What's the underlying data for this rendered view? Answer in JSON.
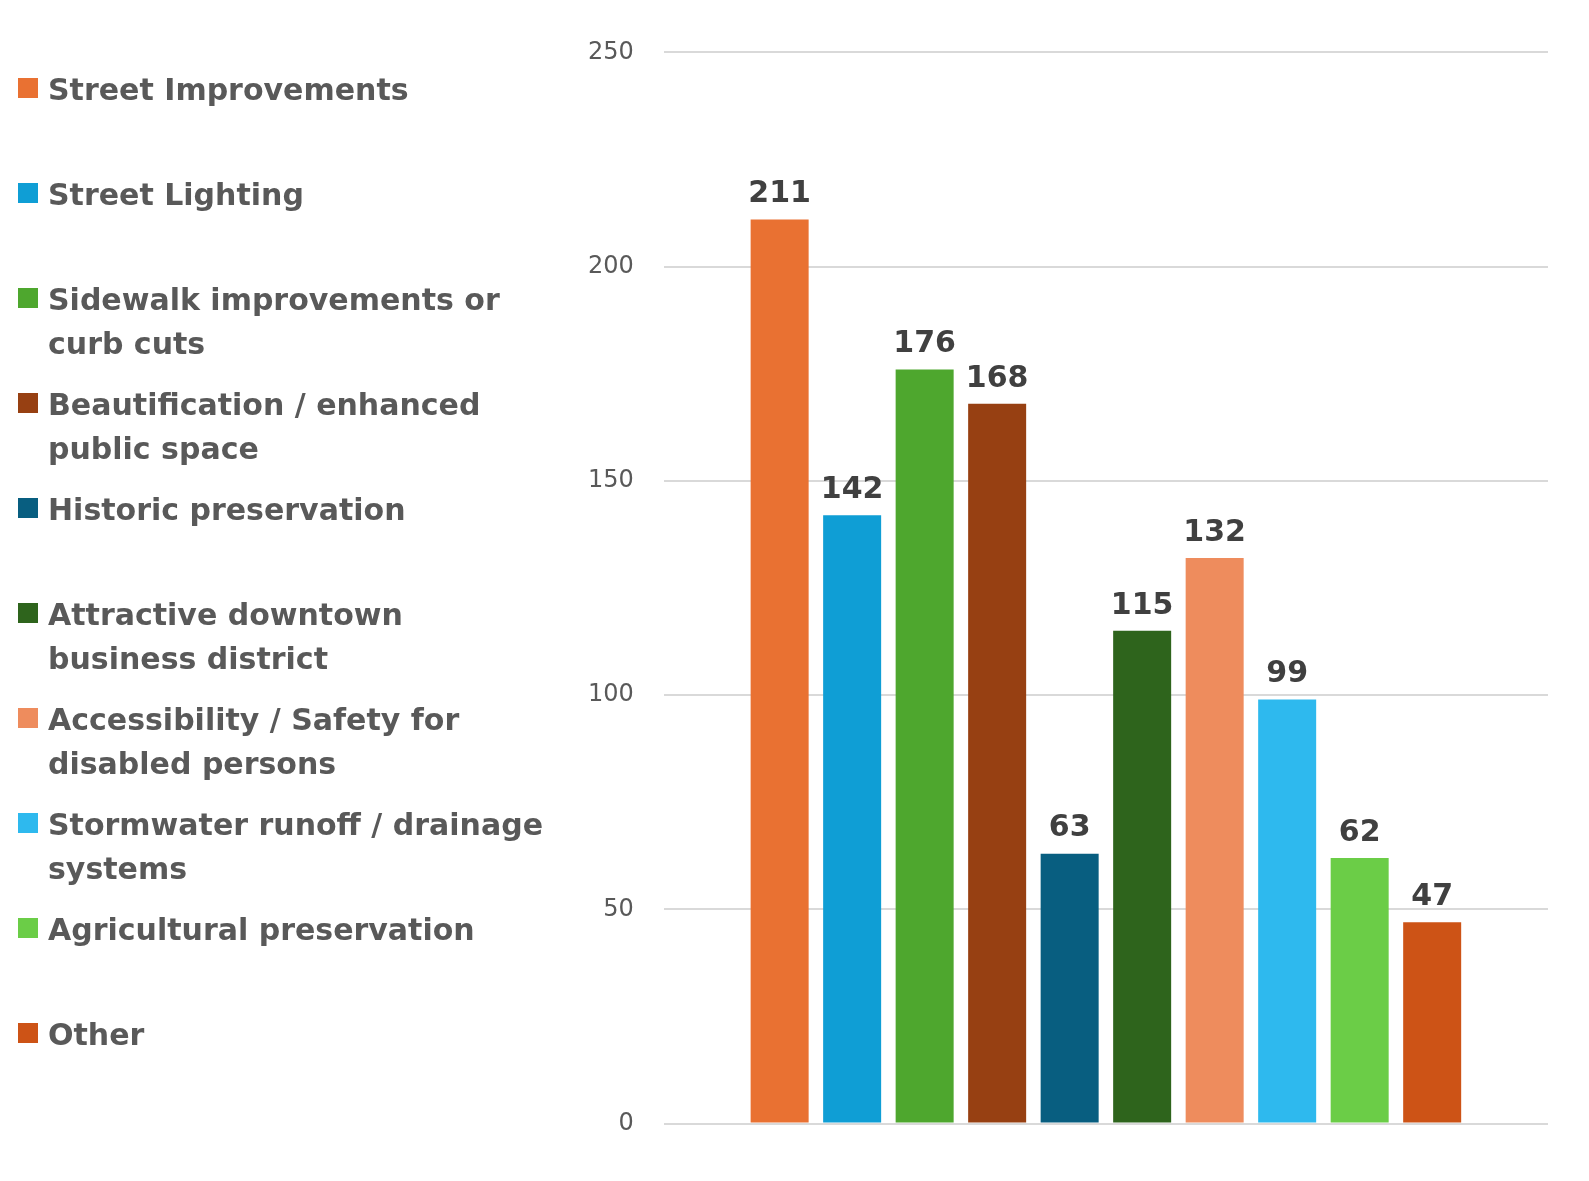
{
  "chart_data": {
    "type": "bar",
    "categories": [
      null
    ],
    "series": [
      {
        "name": "Street Improvements",
        "color": "#e97132",
        "values": [
          211
        ]
      },
      {
        "name": "Street Lighting",
        "color": "#0f9ed5",
        "values": [
          142
        ]
      },
      {
        "name": "Sidewalk improvements or curb cuts",
        "color": "#4ea72e",
        "values": [
          176
        ]
      },
      {
        "name": "Beautification / enhanced public space",
        "color": "#974012",
        "values": [
          168
        ]
      },
      {
        "name": "Historic preservation",
        "color": "#085e80",
        "values": [
          63
        ]
      },
      {
        "name": "Attractive downtown business district",
        "color": "#2e641c",
        "values": [
          115
        ]
      },
      {
        "name": "Accessibility / Safety for disabled persons",
        "color": "#ee8c5d",
        "values": [
          132
        ]
      },
      {
        "name": "Stormwater runoff / drainage systems",
        "color": "#2eb9ee",
        "values": [
          99
        ]
      },
      {
        "name": "Agricultural preservation",
        "color": "#6bcd47",
        "values": [
          62
        ]
      },
      {
        "name": "Other",
        "color": "#cd5316",
        "values": [
          47
        ]
      }
    ],
    "ylim": [
      0,
      250
    ],
    "yticks": [
      0,
      50,
      100,
      150,
      200,
      250
    ],
    "grid": "y",
    "legend": "left",
    "data_labels": true
  }
}
